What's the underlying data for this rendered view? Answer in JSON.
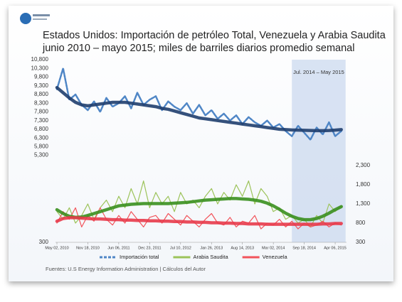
{
  "chart_data": {
    "type": "line",
    "title": "Estados Unidos: Importación de petróleo Total, Venezuela y Arabia Saudita",
    "subtitle": "junio 2010 – mayo 2015; miles de barriles diarios promedio semanal",
    "source": "Fuentes: U.S Energy Information Administration |  Cálculos del Autor",
    "categories": [
      "May 02, 2010",
      null,
      null,
      null,
      null,
      "Nov 18, 2010",
      null,
      null,
      null,
      null,
      "Jun 06, 2011",
      null,
      null,
      null,
      null,
      "Dec 23, 2011",
      null,
      null,
      null,
      null,
      "Jul 10, 2012",
      null,
      null,
      null,
      null,
      "Jan 26, 2013",
      null,
      null,
      null,
      null,
      "Aug 14, 2013",
      null,
      null,
      null,
      null,
      "Mar 02, 2014",
      null,
      null,
      null,
      null,
      "Sep 18, 2014",
      null,
      null,
      null,
      null,
      "Apr 06, 2015",
      null
    ],
    "ylim": [
      300,
      10800
    ],
    "yticks": [
      {
        "value": 10800,
        "label": "10,800"
      },
      {
        "value": 10300,
        "label": "10,300"
      },
      {
        "value": 9800,
        "label": "9,800"
      },
      {
        "value": 9300,
        "label": "9,300"
      },
      {
        "value": 8800,
        "label": "8,800"
      },
      {
        "value": 8300,
        "label": "8,300"
      },
      {
        "value": 7800,
        "label": "7,800"
      },
      {
        "value": 7300,
        "label": "7,300"
      },
      {
        "value": 6800,
        "label": "6,800"
      },
      {
        "value": 6300,
        "label": "6,300"
      },
      {
        "value": 5800,
        "label": "5,800"
      },
      {
        "value": 5300,
        "label": "5,300"
      },
      300
    ],
    "y2lim": [
      300,
      5060
    ],
    "y2ticks": [
      {
        "value": 2300,
        "label": "2,300"
      },
      {
        "value": 1800,
        "label": "1,800"
      },
      {
        "value": 1300,
        "label": "1,300"
      },
      800,
      300
    ],
    "highlight": {
      "label": "Jul. 2014 – May 2015",
      "from": 38,
      "to": 46
    },
    "series": [
      {
        "name": "Importación total",
        "color": "#4f86c6",
        "trend_color": "#1f3e6e",
        "dashed": true,
        "values": [
          9100,
          10300,
          8500,
          8800,
          8200,
          7900,
          8400,
          7800,
          8600,
          8100,
          8300,
          8700,
          8000,
          8900,
          8200,
          8500,
          8700,
          7900,
          8400,
          8100,
          7900,
          8300,
          7700,
          8200,
          7600,
          7900,
          7400,
          7700,
          7300,
          7600,
          7100,
          7500,
          7200,
          7000,
          7300,
          6900,
          7100,
          6700,
          6400,
          7000,
          6600,
          6200,
          6900,
          6500,
          7200,
          6400,
          6700
        ],
        "trend": [
          9200,
          8900,
          8600,
          8350,
          8200,
          8150,
          8200,
          8250,
          8300,
          8350,
          8350,
          8350,
          8300,
          8250,
          8200,
          8150,
          8100,
          8000,
          7950,
          7850,
          7750,
          7650,
          7550,
          7450,
          7400,
          7350,
          7300,
          7250,
          7200,
          7150,
          7100,
          7050,
          7000,
          6950,
          6900,
          6850,
          6800,
          6780,
          6760,
          6750,
          6740,
          6730,
          6720,
          6720,
          6730,
          6750,
          6780
        ]
      },
      {
        "name": "Arabia Saudita",
        "color": "#9cc35a",
        "trend_color": "#3a8f1e",
        "axis": "y2",
        "values": [
          1100,
          900,
          1200,
          800,
          1000,
          1300,
          900,
          1200,
          1400,
          1100,
          1500,
          1200,
          1700,
          1300,
          1900,
          1200,
          1600,
          1300,
          1500,
          1100,
          1600,
          1300,
          1400,
          1200,
          1500,
          1700,
          1300,
          1600,
          1400,
          1800,
          1500,
          1900,
          1300,
          1700,
          1500,
          1100,
          1200,
          900,
          1000,
          800,
          900,
          700,
          1000,
          800,
          1300,
          1100,
          1250
        ],
        "trend": [
          1150,
          1050,
          980,
          950,
          960,
          1000,
          1050,
          1100,
          1150,
          1200,
          1250,
          1270,
          1290,
          1300,
          1310,
          1310,
          1310,
          1310,
          1310,
          1320,
          1330,
          1340,
          1360,
          1380,
          1400,
          1410,
          1420,
          1430,
          1440,
          1440,
          1430,
          1420,
          1400,
          1370,
          1320,
          1250,
          1160,
          1060,
          980,
          920,
          890,
          890,
          920,
          980,
          1060,
          1150,
          1230
        ]
      },
      {
        "name": "Venezuela",
        "color": "#f2545b",
        "trend_color": "#e83a4a",
        "axis": "y2",
        "values": [
          800,
          1100,
          900,
          1200,
          700,
          1000,
          850,
          1200,
          900,
          750,
          1000,
          800,
          1100,
          900,
          700,
          950,
          1000,
          800,
          1050,
          900,
          750,
          1000,
          850,
          700,
          900,
          1050,
          800,
          750,
          950,
          700,
          850,
          800,
          1000,
          650,
          800,
          750,
          900,
          700,
          850,
          650,
          800,
          700,
          750,
          850,
          700,
          800,
          750
        ],
        "trend": [
          850,
          920,
          940,
          940,
          930,
          920,
          910,
          910,
          900,
          890,
          890,
          880,
          880,
          870,
          870,
          860,
          860,
          850,
          850,
          840,
          840,
          830,
          830,
          820,
          820,
          810,
          810,
          800,
          800,
          790,
          790,
          780,
          780,
          780,
          770,
          770,
          770,
          770,
          770,
          770,
          770,
          770,
          770,
          780,
          780,
          790,
          790
        ]
      }
    ]
  }
}
